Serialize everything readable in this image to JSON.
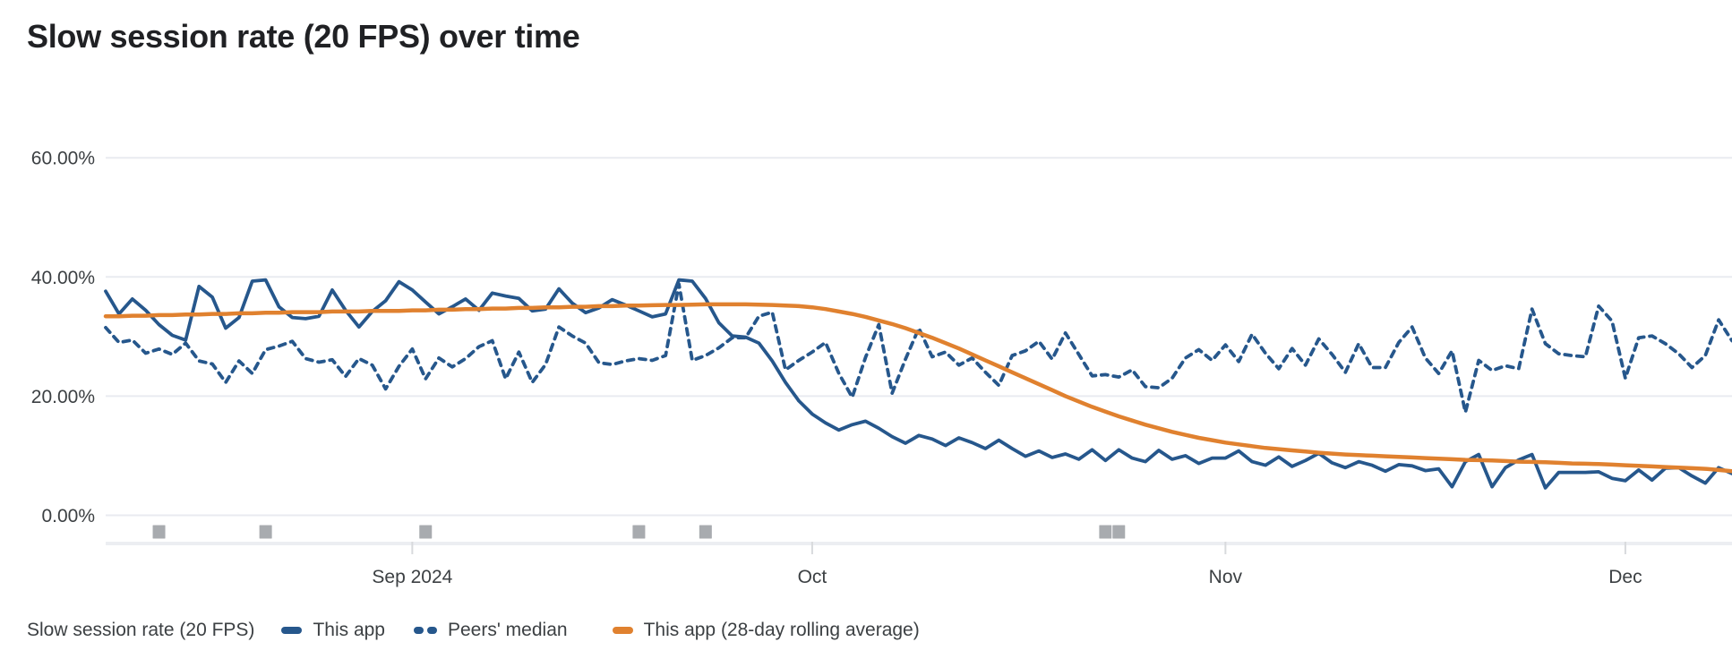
{
  "title": "Slow session rate (20 FPS) over time",
  "legend": {
    "metric_label": "Slow session rate (20 FPS)",
    "items": [
      {
        "label": "This app",
        "style": "solid",
        "color": "#26578C"
      },
      {
        "label": "Peers' median",
        "style": "dashed",
        "color": "#26578C"
      },
      {
        "label": "This app (28-day rolling average)",
        "style": "solid",
        "color": "#E0812F"
      }
    ]
  },
  "colors": {
    "title_text": "#202124",
    "axis_text": "#3c4043",
    "gridline": "#e9ebf0",
    "axis_band": "#eceef2",
    "month_tick": "#d8dadd",
    "release_marker": "#a8abaf",
    "this_app_line": "#26578C",
    "peers_line": "#26578C",
    "rolling_avg_line": "#E0812F",
    "background": "#ffffff"
  },
  "chart_data": {
    "type": "line",
    "title": "Slow session rate (20 FPS) over time",
    "ylabel": "Slow session rate (20 FPS)",
    "y_unit": "percent",
    "ylim": [
      0,
      66
    ],
    "grid": true,
    "legend_position": "bottom",
    "y_ticks": [
      {
        "value": 0,
        "label": "0.00%"
      },
      {
        "value": 20,
        "label": "20.00%"
      },
      {
        "value": 40,
        "label": "40.00%"
      },
      {
        "value": 60,
        "label": "60.00%"
      }
    ],
    "x_unit": "day_index",
    "x_ticks": [
      {
        "label": "Sep 2024",
        "day": 23
      },
      {
        "label": "Oct",
        "day": 53
      },
      {
        "label": "Nov",
        "day": 84
      },
      {
        "label": "Dec",
        "day": 114
      }
    ],
    "release_markers": {
      "day_indices": [
        4,
        12,
        24,
        40,
        45,
        75,
        76
      ]
    },
    "series": [
      {
        "name": "This app",
        "style": "solid",
        "color": "#26578C",
        "values": [
          37.6,
          33.8,
          36.3,
          34.4,
          32.0,
          30.2,
          29.4,
          38.4,
          36.6,
          31.4,
          33.2,
          39.3,
          39.5,
          35.0,
          33.2,
          33.0,
          33.4,
          37.8,
          34.4,
          31.6,
          34.2,
          36.0,
          39.2,
          37.8,
          35.8,
          33.8,
          35.0,
          36.3,
          34.4,
          37.3,
          36.8,
          36.4,
          34.3,
          34.6,
          38.0,
          35.6,
          34.0,
          34.8,
          36.2,
          35.3,
          34.3,
          33.3,
          33.8,
          39.5,
          39.3,
          36.4,
          32.3,
          30.1,
          29.9,
          28.9,
          25.9,
          22.3,
          19.2,
          17.0,
          15.5,
          14.3,
          15.2,
          15.8,
          14.6,
          13.2,
          12.1,
          13.4,
          12.8,
          11.7,
          13.0,
          12.2,
          11.2,
          12.6,
          11.2,
          9.9,
          10.8,
          9.7,
          10.3,
          9.4,
          11.0,
          9.2,
          11.0,
          9.6,
          9.0,
          10.9,
          9.4,
          10.0,
          8.7,
          9.6,
          9.6,
          10.8,
          9.0,
          8.4,
          9.8,
          8.2,
          9.2,
          10.4,
          8.8,
          8.0,
          9.0,
          8.4,
          7.4,
          8.5,
          8.3,
          7.5,
          7.8,
          4.8,
          9.0,
          10.2,
          4.8,
          8.0,
          9.3,
          10.2,
          4.6,
          7.2,
          7.2,
          7.2,
          7.3,
          6.2,
          5.8,
          7.6,
          5.9,
          7.9,
          8.0,
          6.6,
          5.4,
          8.0,
          7.0
        ]
      },
      {
        "name": "Peers' median",
        "style": "dashed",
        "color": "#26578C",
        "values": [
          31.5,
          29.0,
          29.4,
          27.2,
          27.9,
          27.0,
          28.9,
          25.9,
          25.4,
          22.3,
          25.9,
          23.8,
          27.8,
          28.4,
          29.2,
          26.3,
          25.7,
          26.1,
          23.3,
          26.3,
          25.2,
          21.2,
          25.0,
          27.9,
          22.9,
          26.4,
          24.9,
          26.3,
          28.3,
          29.3,
          22.9,
          27.4,
          22.3,
          25.3,
          31.6,
          30.1,
          28.9,
          25.6,
          25.3,
          25.9,
          26.3,
          26.0,
          26.8,
          38.8,
          26.0,
          26.8,
          28.1,
          29.8,
          29.8,
          33.4,
          34.1,
          24.4,
          26.0,
          27.4,
          29.0,
          23.8,
          19.8,
          26.5,
          32.0,
          20.5,
          26.2,
          31.4,
          26.6,
          27.4,
          25.2,
          26.4,
          24.0,
          21.8,
          26.8,
          27.6,
          29.2,
          26.2,
          30.6,
          27.0,
          23.4,
          23.6,
          23.2,
          24.4,
          21.6,
          21.4,
          23.0,
          26.4,
          27.8,
          26.0,
          28.6,
          25.8,
          30.4,
          27.2,
          24.6,
          28.0,
          25.2,
          29.6,
          27.0,
          24.0,
          28.8,
          24.8,
          24.8,
          29.0,
          31.6,
          26.4,
          23.8,
          27.6,
          17.3,
          26.0,
          24.3,
          25.1,
          24.6,
          34.6,
          28.8,
          27.1,
          26.8,
          26.6,
          35.1,
          32.6,
          23.0,
          29.8,
          30.1,
          28.8,
          27.1,
          24.8,
          26.8,
          32.8,
          29.3
        ]
      },
      {
        "name": "This app (28-day rolling average)",
        "style": "solid",
        "color": "#E0812F",
        "values": [
          33.4,
          33.4,
          33.5,
          33.5,
          33.6,
          33.6,
          33.7,
          33.7,
          33.8,
          33.8,
          33.9,
          33.9,
          34.0,
          34.0,
          34.1,
          34.1,
          34.1,
          34.2,
          34.2,
          34.2,
          34.3,
          34.3,
          34.3,
          34.4,
          34.4,
          34.5,
          34.5,
          34.6,
          34.6,
          34.7,
          34.7,
          34.8,
          34.8,
          34.9,
          34.9,
          35.0,
          35.0,
          35.1,
          35.1,
          35.2,
          35.2,
          35.25,
          35.3,
          35.3,
          35.35,
          35.4,
          35.4,
          35.4,
          35.4,
          35.35,
          35.3,
          35.2,
          35.1,
          34.9,
          34.6,
          34.2,
          33.8,
          33.3,
          32.7,
          32.1,
          31.4,
          30.6,
          29.8,
          28.9,
          28.0,
          27.0,
          26.0,
          25.0,
          24.0,
          23.0,
          22.0,
          21.0,
          20.0,
          19.1,
          18.2,
          17.4,
          16.6,
          15.9,
          15.2,
          14.6,
          14.0,
          13.5,
          13.0,
          12.6,
          12.2,
          11.9,
          11.6,
          11.3,
          11.1,
          10.9,
          10.7,
          10.5,
          10.35,
          10.2,
          10.1,
          10.0,
          9.9,
          9.8,
          9.7,
          9.6,
          9.5,
          9.4,
          9.3,
          9.25,
          9.2,
          9.1,
          9.0,
          8.95,
          8.9,
          8.8,
          8.7,
          8.65,
          8.6,
          8.5,
          8.4,
          8.3,
          8.2,
          8.1,
          8.0,
          7.9,
          7.8,
          7.6,
          7.4
        ]
      }
    ]
  }
}
